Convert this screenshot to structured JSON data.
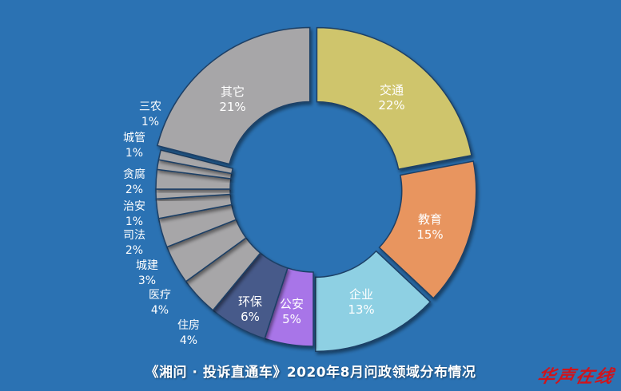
{
  "chart_data": {
    "type": "pie",
    "title": "《湘问 · 投诉直通车》2020年8月问政领域分布情况",
    "donut": true,
    "slices": [
      {
        "name": "交通",
        "label": "22%",
        "value": 22,
        "color": "#cfc56c",
        "exploded": true
      },
      {
        "name": "教育",
        "label": "15%",
        "value": 15,
        "color": "#e8955f",
        "exploded": true
      },
      {
        "name": "企业",
        "label": "13%",
        "value": 13,
        "color": "#8ed0e3",
        "exploded": true
      },
      {
        "name": "公安",
        "label": "5%",
        "value": 5,
        "color": "#a874e8",
        "exploded": false
      },
      {
        "name": "环保",
        "label": "6%",
        "value": 6,
        "color": "#465a8a",
        "exploded": false
      },
      {
        "name": "住房",
        "label": "4%",
        "value": 4,
        "color": "#a7a6a8",
        "exploded": false
      },
      {
        "name": "医疗",
        "label": "4%",
        "value": 4,
        "color": "#a7a6a8",
        "exploded": false
      },
      {
        "name": "城建",
        "label": "3%",
        "value": 3,
        "color": "#a7a6a8",
        "exploded": false
      },
      {
        "name": "司法",
        "label": "2%",
        "value": 2,
        "color": "#a7a6a8",
        "exploded": false
      },
      {
        "name": "治安",
        "label": "1%",
        "value": 1,
        "color": "#a7a6a8",
        "exploded": false
      },
      {
        "name": "贪腐",
        "label": "2%",
        "value": 2,
        "color": "#a7a6a8",
        "exploded": false
      },
      {
        "name": "城管",
        "label": "1%",
        "value": 1,
        "color": "#a7a6a8",
        "exploded": false
      },
      {
        "name": "三农",
        "label": "1%",
        "value": 1,
        "color": "#a7a6a8",
        "exploded": false
      },
      {
        "name": "其它",
        "label": "21%",
        "value": 21,
        "color": "#a7a6a8",
        "exploded": true
      }
    ]
  },
  "logo": {
    "text": "华声在线"
  },
  "colors": {
    "background": "#2b72b3",
    "divider": "#1e3f66"
  }
}
